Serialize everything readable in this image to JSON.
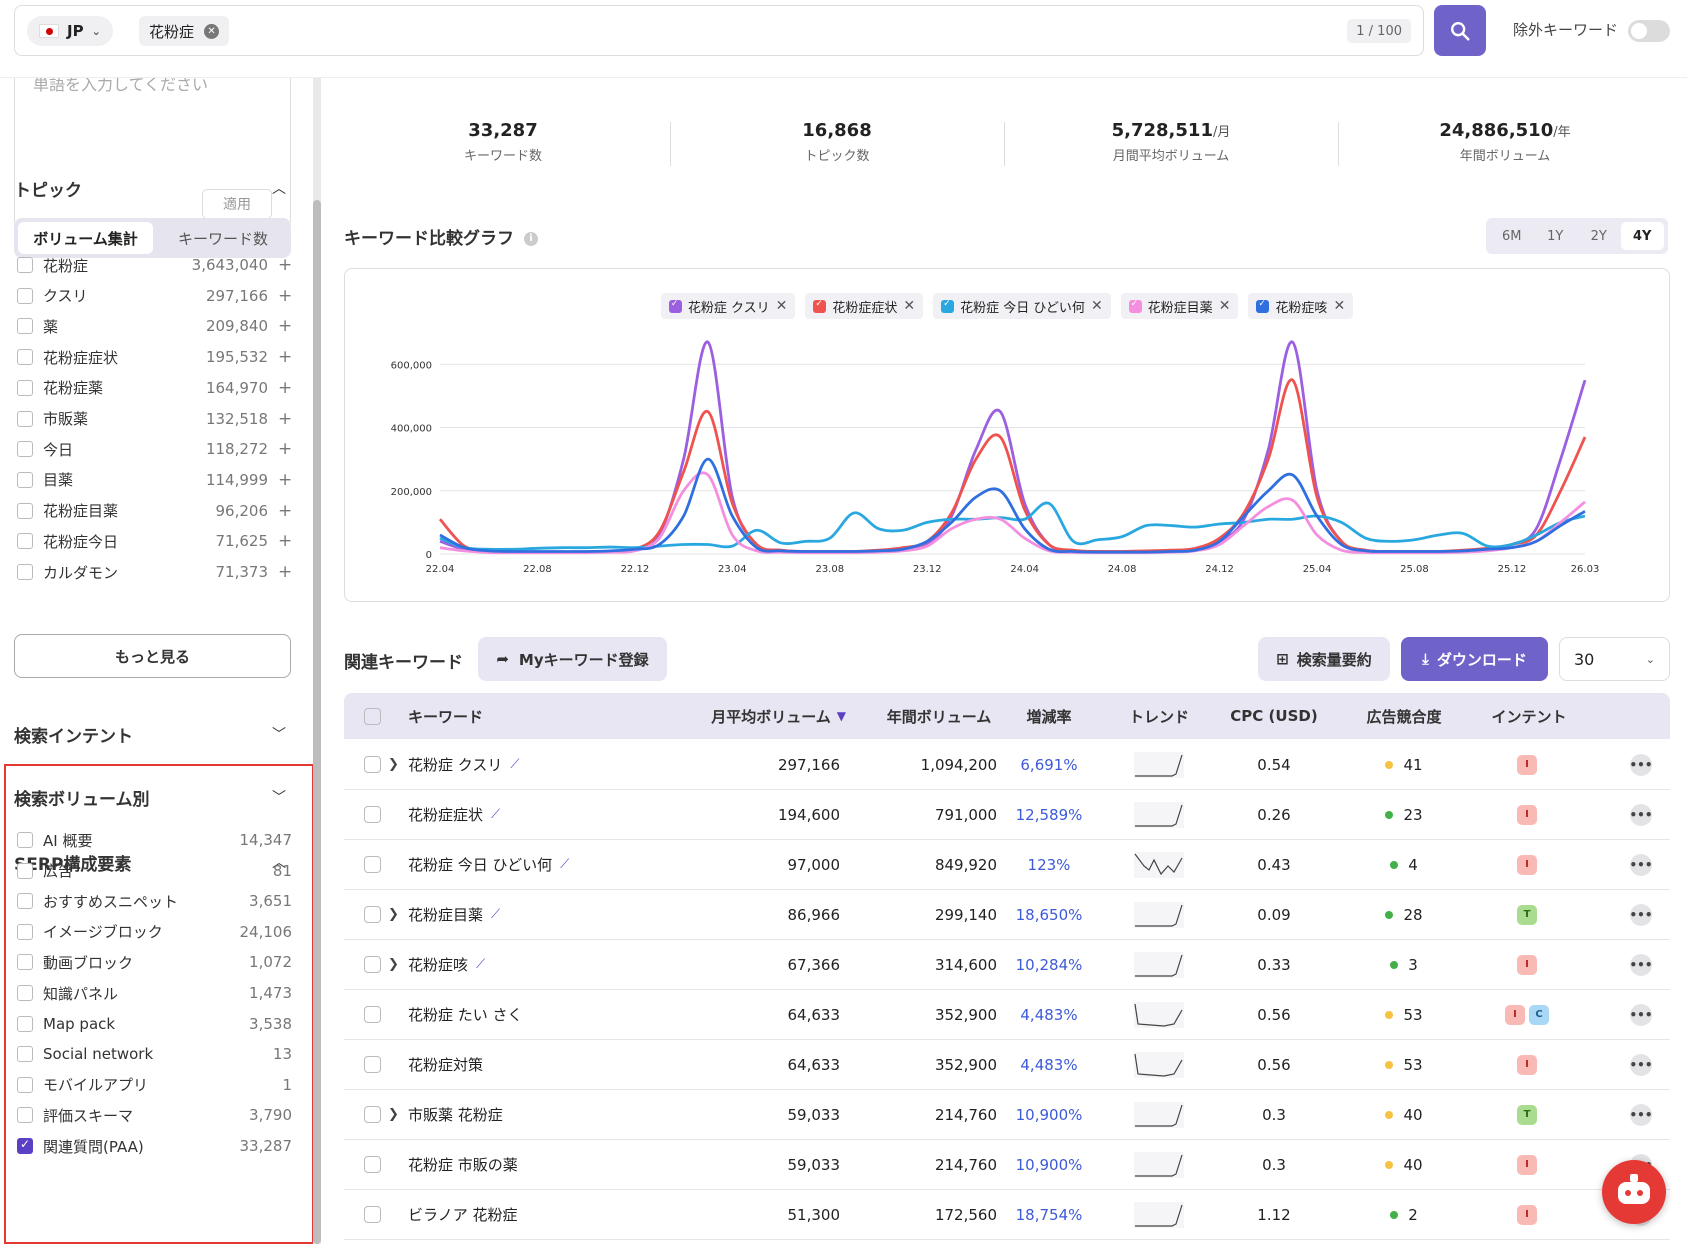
{
  "search": {
    "country": "JP",
    "keyword": "花粉症",
    "count": "1 / 100",
    "exclude_label": "除外キーワード"
  },
  "sidebar": {
    "word_placeholder": "単語を入力してください",
    "apply": "適用",
    "topic_title": "トピック",
    "seg_on": "ボリューム集計",
    "seg_off": "キーワード数",
    "topics": [
      {
        "label": "花粉症",
        "num": "3,643,040"
      },
      {
        "label": "クスリ",
        "num": "297,166"
      },
      {
        "label": "薬",
        "num": "209,840"
      },
      {
        "label": "花粉症症状",
        "num": "195,532"
      },
      {
        "label": "花粉症薬",
        "num": "164,970"
      },
      {
        "label": "市販薬",
        "num": "132,518"
      },
      {
        "label": "今日",
        "num": "118,272"
      },
      {
        "label": "目薬",
        "num": "114,999"
      },
      {
        "label": "花粉症目薬",
        "num": "96,206"
      },
      {
        "label": "花粉症今日",
        "num": "71,625"
      },
      {
        "label": "カルダモン",
        "num": "71,373"
      }
    ],
    "more": "もっと見る",
    "intent_title": "検索インテント",
    "volume_title": "検索ボリューム別",
    "serp_title": "SERP構成要素",
    "serp": [
      {
        "label": "AI 概要",
        "num": "14,347",
        "checked": false
      },
      {
        "label": "広告",
        "num": "81",
        "checked": false
      },
      {
        "label": "おすすめスニペット",
        "num": "3,651",
        "checked": false
      },
      {
        "label": "イメージブロック",
        "num": "24,106",
        "checked": false
      },
      {
        "label": "動画ブロック",
        "num": "1,072",
        "checked": false
      },
      {
        "label": "知識パネル",
        "num": "1,473",
        "checked": false
      },
      {
        "label": "Map pack",
        "num": "3,538",
        "checked": false
      },
      {
        "label": "Social network",
        "num": "13",
        "checked": false
      },
      {
        "label": "モバイルアプリ",
        "num": "1",
        "checked": false
      },
      {
        "label": "評価スキーマ",
        "num": "3,790",
        "checked": false
      },
      {
        "label": "関連質問(PAA)",
        "num": "33,287",
        "checked": true
      }
    ]
  },
  "stats": [
    {
      "value": "33,287",
      "unit": "",
      "label": "キーワード数"
    },
    {
      "value": "16,868",
      "unit": "",
      "label": "トピック数"
    },
    {
      "value": "5,728,511",
      "unit": "/月",
      "label": "月間平均ボリューム"
    },
    {
      "value": "24,886,510",
      "unit": "/年",
      "label": "年間ボリューム"
    }
  ],
  "chart_title": "キーワード比較グラフ",
  "periods": [
    "6M",
    "1Y",
    "2Y",
    "4Y"
  ],
  "active_period": "4Y",
  "chart_data": {
    "type": "line",
    "x": [
      "22.04",
      "22.05",
      "22.06",
      "22.07",
      "22.08",
      "22.09",
      "22.10",
      "22.11",
      "22.12",
      "23.01",
      "23.02",
      "23.03",
      "23.04",
      "23.05",
      "23.06",
      "23.07",
      "23.08",
      "23.09",
      "23.10",
      "23.11",
      "23.12",
      "24.01",
      "24.02",
      "24.03",
      "24.04",
      "24.05",
      "24.06",
      "24.07",
      "24.08",
      "24.09",
      "24.10",
      "24.11",
      "24.12",
      "25.01",
      "25.02",
      "25.03",
      "25.04",
      "25.05",
      "25.06",
      "25.07",
      "25.08",
      "25.09",
      "25.10",
      "25.11",
      "25.12",
      "26.01",
      "26.02",
      "26.03"
    ],
    "x_tick_labels": [
      "22.04",
      "22.08",
      "22.12",
      "23.04",
      "23.08",
      "23.12",
      "24.04",
      "24.08",
      "24.12",
      "25.04",
      "25.08",
      "25.12",
      "26.03"
    ],
    "y_ticks": [
      "0",
      "200,000",
      "400,000",
      "600,000"
    ],
    "ylim": [
      0,
      680000
    ],
    "grid": true,
    "legend_position": "top-center",
    "series": [
      {
        "name": "花粉症 クスリ",
        "color": "#9b5fe0",
        "values": [
          40000,
          15000,
          8000,
          6000,
          6000,
          6000,
          6000,
          8000,
          12000,
          60000,
          300000,
          670000,
          180000,
          30000,
          12000,
          8000,
          8000,
          8000,
          10000,
          15000,
          30000,
          120000,
          330000,
          450000,
          160000,
          30000,
          10000,
          8000,
          8000,
          8000,
          10000,
          15000,
          40000,
          110000,
          330000,
          670000,
          200000,
          40000,
          12000,
          8000,
          8000,
          8000,
          10000,
          15000,
          30000,
          80000,
          300000,
          550000
        ]
      },
      {
        "name": "花粉症症状",
        "color": "#ef5350",
        "values": [
          110000,
          25000,
          10000,
          7000,
          6000,
          6000,
          6000,
          8000,
          15000,
          70000,
          260000,
          450000,
          160000,
          30000,
          12000,
          8000,
          8000,
          8000,
          12000,
          20000,
          40000,
          130000,
          300000,
          370000,
          140000,
          30000,
          12000,
          8000,
          8000,
          10000,
          12000,
          18000,
          50000,
          130000,
          300000,
          550000,
          180000,
          40000,
          12000,
          8000,
          8000,
          8000,
          12000,
          18000,
          30000,
          60000,
          200000,
          370000
        ]
      },
      {
        "name": "花粉症 今日 ひどい何",
        "color": "#29a8e0",
        "values": [
          50000,
          20000,
          15000,
          15000,
          18000,
          20000,
          20000,
          22000,
          20000,
          25000,
          30000,
          30000,
          25000,
          75000,
          35000,
          40000,
          50000,
          130000,
          80000,
          75000,
          100000,
          110000,
          110000,
          115000,
          110000,
          160000,
          40000,
          45000,
          55000,
          90000,
          90000,
          85000,
          95000,
          100000,
          110000,
          110000,
          120000,
          100000,
          50000,
          40000,
          45000,
          60000,
          65000,
          25000,
          30000,
          60000,
          100000,
          120000
        ]
      },
      {
        "name": "花粉症目薬",
        "color": "#f48fe0",
        "values": [
          20000,
          10000,
          5000,
          4000,
          4000,
          4000,
          4000,
          6000,
          10000,
          50000,
          200000,
          250000,
          60000,
          10000,
          6000,
          4000,
          4000,
          4000,
          6000,
          10000,
          25000,
          80000,
          110000,
          110000,
          50000,
          10000,
          5000,
          4000,
          4000,
          4000,
          6000,
          10000,
          30000,
          90000,
          150000,
          170000,
          60000,
          12000,
          5000,
          4000,
          4000,
          4000,
          6000,
          10000,
          20000,
          40000,
          100000,
          165000
        ]
      },
      {
        "name": "花粉症咳",
        "color": "#2f6fe0",
        "values": [
          60000,
          20000,
          10000,
          8000,
          8000,
          8000,
          8000,
          10000,
          15000,
          30000,
          120000,
          300000,
          120000,
          20000,
          10000,
          8000,
          8000,
          8000,
          10000,
          15000,
          40000,
          100000,
          180000,
          200000,
          80000,
          15000,
          8000,
          6000,
          6000,
          6000,
          8000,
          12000,
          40000,
          120000,
          200000,
          250000,
          120000,
          30000,
          10000,
          8000,
          8000,
          8000,
          10000,
          15000,
          20000,
          40000,
          90000,
          135000
        ]
      }
    ]
  },
  "related": {
    "title": "関連キーワード",
    "my_kw": "Myキーワード登録",
    "summary": "検索量要約",
    "download": "ダウンロード",
    "per_page": "30",
    "headers": [
      "キーワード",
      "月平均ボリューム",
      "年間ボリューム",
      "増減率",
      "トレンド",
      "CPC (USD)",
      "広告競合度",
      "インテント"
    ],
    "rows": [
      {
        "kw": "花粉症 クスリ",
        "expand": true,
        "icon": true,
        "monthly": "297,166",
        "yearly": "1,094,200",
        "growth": "6,691%",
        "cpc": "0.54",
        "comp": "41",
        "compcolor": "#f5c242",
        "intents": [
          "I"
        ],
        "trend": "sharp"
      },
      {
        "kw": "花粉症症状",
        "expand": false,
        "icon": true,
        "monthly": "194,600",
        "yearly": "791,000",
        "growth": "12,589%",
        "cpc": "0.26",
        "comp": "23",
        "compcolor": "#43b047",
        "intents": [
          "I"
        ],
        "trend": "sharp"
      },
      {
        "kw": "花粉症 今日 ひどい何",
        "expand": false,
        "icon": true,
        "monthly": "97,000",
        "yearly": "849,920",
        "growth": "123%",
        "cpc": "0.43",
        "comp": "4",
        "compcolor": "#43b047",
        "intents": [
          "I"
        ],
        "trend": "wavy"
      },
      {
        "kw": "花粉症目薬",
        "expand": true,
        "icon": true,
        "monthly": "86,966",
        "yearly": "299,140",
        "growth": "18,650%",
        "cpc": "0.09",
        "comp": "28",
        "compcolor": "#43b047",
        "intents": [
          "T"
        ],
        "trend": "sharp"
      },
      {
        "kw": "花粉症咳",
        "expand": true,
        "icon": true,
        "monthly": "67,366",
        "yearly": "314,600",
        "growth": "10,284%",
        "cpc": "0.33",
        "comp": "3",
        "compcolor": "#43b047",
        "intents": [
          "I"
        ],
        "trend": "sharp"
      },
      {
        "kw": "花粉症 たい さく",
        "expand": false,
        "icon": false,
        "monthly": "64,633",
        "yearly": "352,900",
        "growth": "4,483%",
        "cpc": "0.56",
        "comp": "53",
        "compcolor": "#f5c242",
        "intents": [
          "I",
          "C"
        ],
        "trend": "dip"
      },
      {
        "kw": "花粉症対策",
        "expand": false,
        "icon": false,
        "monthly": "64,633",
        "yearly": "352,900",
        "growth": "4,483%",
        "cpc": "0.56",
        "comp": "53",
        "compcolor": "#f5c242",
        "intents": [
          "I"
        ],
        "trend": "dip"
      },
      {
        "kw": "市販薬 花粉症",
        "expand": true,
        "icon": false,
        "monthly": "59,033",
        "yearly": "214,760",
        "growth": "10,900%",
        "cpc": "0.3",
        "comp": "40",
        "compcolor": "#f5c242",
        "intents": [
          "T"
        ],
        "trend": "sharp"
      },
      {
        "kw": "花粉症 市販の薬",
        "expand": false,
        "icon": false,
        "monthly": "59,033",
        "yearly": "214,760",
        "growth": "10,900%",
        "cpc": "0.3",
        "comp": "40",
        "compcolor": "#f5c242",
        "intents": [
          "I"
        ],
        "trend": "sharp"
      },
      {
        "kw": "ビラノア 花粉症",
        "expand": false,
        "icon": false,
        "monthly": "51,300",
        "yearly": "172,560",
        "growth": "18,754%",
        "cpc": "1.12",
        "comp": "2",
        "compcolor": "#43b047",
        "intents": [
          "I"
        ],
        "trend": "sharp"
      }
    ]
  }
}
